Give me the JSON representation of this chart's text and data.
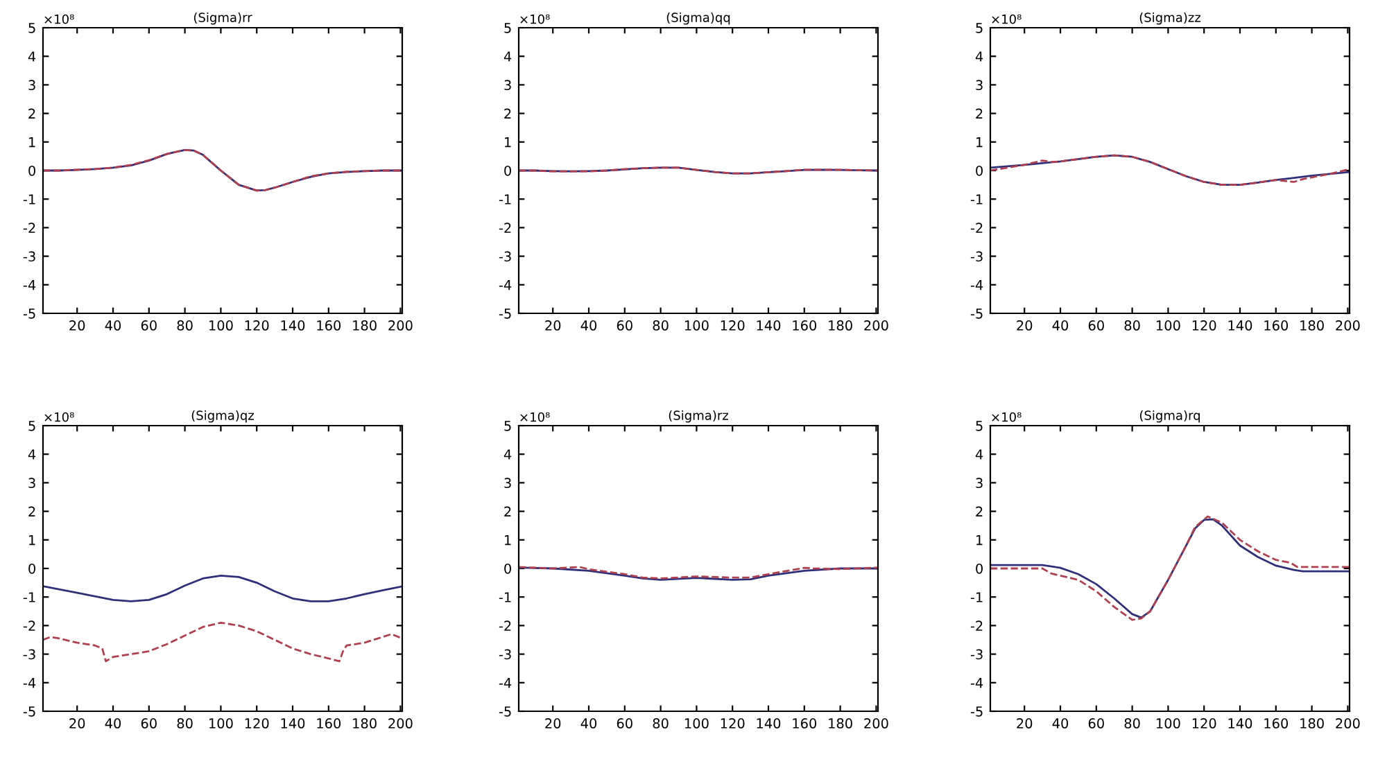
{
  "chart_data": [
    {
      "type": "line",
      "title": "(Sigma)rr",
      "annotations": [
        "×10⁸"
      ],
      "xlim": [
        1,
        201
      ],
      "xticks": [
        20,
        40,
        60,
        80,
        100,
        120,
        140,
        160,
        180,
        200
      ],
      "ylim": [
        -5,
        5
      ],
      "yticks": [
        -5,
        -4,
        -3,
        -2,
        -1,
        0,
        1,
        2,
        3,
        4,
        5
      ],
      "grid": false,
      "series": [
        {
          "color": "#2f2f7a",
          "line_style": "solid",
          "x": [
            1,
            10,
            20,
            30,
            40,
            50,
            60,
            70,
            80,
            85,
            90,
            100,
            110,
            120,
            125,
            130,
            140,
            150,
            160,
            170,
            180,
            190,
            201
          ],
          "values": [
            0,
            0,
            0.02,
            0.05,
            0.1,
            0.18,
            0.35,
            0.58,
            0.72,
            0.7,
            0.55,
            0.0,
            -0.5,
            -0.7,
            -0.68,
            -0.6,
            -0.4,
            -0.22,
            -0.1,
            -0.05,
            -0.02,
            0,
            0
          ]
        },
        {
          "color": "#b04050",
          "line_style": "dashed",
          "x": [
            1,
            10,
            20,
            30,
            40,
            50,
            60,
            70,
            80,
            85,
            90,
            100,
            110,
            120,
            125,
            130,
            140,
            150,
            160,
            170,
            180,
            190,
            201
          ],
          "values": [
            0,
            0,
            0.03,
            0.05,
            0.1,
            0.2,
            0.36,
            0.58,
            0.72,
            0.7,
            0.55,
            0.0,
            -0.5,
            -0.7,
            -0.68,
            -0.6,
            -0.4,
            -0.2,
            -0.1,
            -0.04,
            -0.02,
            0,
            0
          ]
        }
      ]
    },
    {
      "type": "line",
      "title": "(Sigma)qq",
      "annotations": [
        "×10⁸"
      ],
      "xlim": [
        1,
        201
      ],
      "xticks": [
        20,
        40,
        60,
        80,
        100,
        120,
        140,
        160,
        180,
        200
      ],
      "ylim": [
        -5,
        5
      ],
      "yticks": [
        -5,
        -4,
        -3,
        -2,
        -1,
        0,
        1,
        2,
        3,
        4,
        5
      ],
      "grid": false,
      "series": [
        {
          "color": "#2f2f7a",
          "line_style": "solid",
          "x": [
            1,
            10,
            20,
            30,
            40,
            50,
            60,
            70,
            80,
            90,
            100,
            110,
            120,
            130,
            140,
            150,
            160,
            170,
            180,
            190,
            201
          ],
          "values": [
            0,
            0,
            -0.02,
            -0.03,
            -0.02,
            0,
            0.04,
            0.08,
            0.1,
            0.1,
            0.02,
            -0.05,
            -0.1,
            -0.1,
            -0.06,
            -0.02,
            0.02,
            0.03,
            0.02,
            0.01,
            0
          ]
        },
        {
          "color": "#b04050",
          "line_style": "dashed",
          "x": [
            1,
            10,
            20,
            30,
            40,
            50,
            60,
            70,
            80,
            90,
            100,
            110,
            120,
            130,
            140,
            150,
            160,
            170,
            180,
            190,
            201
          ],
          "values": [
            0,
            0,
            -0.03,
            -0.03,
            -0.03,
            0,
            0.05,
            0.08,
            0.1,
            0.1,
            0.02,
            -0.05,
            -0.1,
            -0.1,
            -0.06,
            -0.02,
            0.03,
            0.03,
            0.03,
            0.01,
            0
          ]
        }
      ]
    },
    {
      "type": "line",
      "title": "(Sigma)zz",
      "annotations": [
        "×10⁸"
      ],
      "xlim": [
        1,
        201
      ],
      "xticks": [
        20,
        40,
        60,
        80,
        100,
        120,
        140,
        160,
        180,
        200
      ],
      "ylim": [
        -5,
        5
      ],
      "yticks": [
        -5,
        -4,
        -3,
        -2,
        -1,
        0,
        1,
        2,
        3,
        4,
        5
      ],
      "grid": false,
      "series": [
        {
          "color": "#2f2f7a",
          "line_style": "solid",
          "x": [
            1,
            20,
            40,
            60,
            70,
            80,
            90,
            100,
            110,
            120,
            130,
            140,
            150,
            160,
            170,
            180,
            190,
            201
          ],
          "values": [
            0.1,
            0.2,
            0.32,
            0.48,
            0.53,
            0.48,
            0.3,
            0.05,
            -0.2,
            -0.4,
            -0.5,
            -0.5,
            -0.42,
            -0.33,
            -0.26,
            -0.18,
            -0.12,
            -0.05
          ]
        },
        {
          "color": "#b04050",
          "line_style": "dashed",
          "x": [
            1,
            20,
            30,
            35,
            40,
            60,
            70,
            80,
            90,
            100,
            110,
            120,
            130,
            140,
            150,
            160,
            170,
            175,
            190,
            201
          ],
          "values": [
            0,
            0.2,
            0.35,
            0.3,
            0.32,
            0.48,
            0.53,
            0.48,
            0.3,
            0.05,
            -0.2,
            -0.4,
            -0.5,
            -0.5,
            -0.42,
            -0.33,
            -0.4,
            -0.3,
            -0.12,
            0.05
          ]
        }
      ]
    },
    {
      "type": "line",
      "title": "(Sigma)qz",
      "annotations": [
        "×10⁸"
      ],
      "xlim": [
        1,
        201
      ],
      "xticks": [
        20,
        40,
        60,
        80,
        100,
        120,
        140,
        160,
        180,
        200
      ],
      "ylim": [
        -5,
        5
      ],
      "yticks": [
        -5,
        -4,
        -3,
        -2,
        -1,
        0,
        1,
        2,
        3,
        4,
        5
      ],
      "grid": false,
      "series": [
        {
          "color": "#2f2f7a",
          "line_style": "solid",
          "x": [
            1,
            20,
            40,
            50,
            60,
            70,
            80,
            90,
            100,
            110,
            120,
            130,
            140,
            150,
            160,
            170,
            180,
            190,
            201
          ],
          "values": [
            -0.62,
            -0.85,
            -1.1,
            -1.15,
            -1.1,
            -0.9,
            -0.6,
            -0.35,
            -0.25,
            -0.3,
            -0.5,
            -0.8,
            -1.05,
            -1.15,
            -1.15,
            -1.05,
            -0.9,
            -0.77,
            -0.63
          ]
        },
        {
          "color": "#b04050",
          "line_style": "dashed",
          "x": [
            1,
            5,
            10,
            20,
            30,
            34,
            36,
            40,
            50,
            60,
            70,
            80,
            90,
            100,
            110,
            120,
            130,
            140,
            150,
            160,
            166,
            168,
            170,
            180,
            190,
            195,
            201
          ],
          "values": [
            -2.5,
            -2.4,
            -2.45,
            -2.6,
            -2.7,
            -2.8,
            -3.25,
            -3.1,
            -3.0,
            -2.9,
            -2.65,
            -2.35,
            -2.05,
            -1.9,
            -2.0,
            -2.2,
            -2.5,
            -2.8,
            -3.0,
            -3.15,
            -3.25,
            -2.9,
            -2.7,
            -2.6,
            -2.4,
            -2.3,
            -2.45
          ]
        }
      ]
    },
    {
      "type": "line",
      "title": "(Sigma)rz",
      "annotations": [
        "×10⁸"
      ],
      "xlim": [
        1,
        201
      ],
      "xticks": [
        20,
        40,
        60,
        80,
        100,
        120,
        140,
        160,
        180,
        200
      ],
      "ylim": [
        -5,
        5
      ],
      "yticks": [
        -5,
        -4,
        -3,
        -2,
        -1,
        0,
        1,
        2,
        3,
        4,
        5
      ],
      "grid": false,
      "series": [
        {
          "color": "#2f2f7a",
          "line_style": "solid",
          "x": [
            1,
            20,
            40,
            60,
            70,
            80,
            100,
            120,
            130,
            140,
            160,
            180,
            201
          ],
          "values": [
            0.03,
            0,
            -0.08,
            -0.25,
            -0.35,
            -0.4,
            -0.33,
            -0.4,
            -0.38,
            -0.25,
            -0.08,
            0,
            0
          ]
        },
        {
          "color": "#b04050",
          "line_style": "dashed",
          "x": [
            1,
            20,
            35,
            40,
            60,
            70,
            80,
            100,
            120,
            130,
            140,
            160,
            165,
            180,
            201
          ],
          "values": [
            0.05,
            0,
            0.05,
            -0.03,
            -0.2,
            -0.32,
            -0.35,
            -0.28,
            -0.32,
            -0.32,
            -0.2,
            0.02,
            0,
            -0.02,
            0.03
          ]
        }
      ]
    },
    {
      "type": "line",
      "title": "(Sigma)rq",
      "annotations": [
        "×10⁸"
      ],
      "xlim": [
        1,
        201
      ],
      "xticks": [
        20,
        40,
        60,
        80,
        100,
        120,
        140,
        160,
        180,
        200
      ],
      "ylim": [
        -5,
        5
      ],
      "yticks": [
        -5,
        -4,
        -3,
        -2,
        -1,
        0,
        1,
        2,
        3,
        4,
        5
      ],
      "grid": false,
      "series": [
        {
          "color": "#2f2f7a",
          "line_style": "solid",
          "x": [
            1,
            30,
            40,
            50,
            60,
            70,
            80,
            85,
            90,
            100,
            110,
            115,
            120,
            125,
            130,
            140,
            150,
            160,
            170,
            175,
            201
          ],
          "values": [
            0.12,
            0.12,
            0.02,
            -0.2,
            -0.55,
            -1.05,
            -1.6,
            -1.72,
            -1.5,
            -0.4,
            0.8,
            1.4,
            1.7,
            1.72,
            1.5,
            0.8,
            0.4,
            0.1,
            -0.05,
            -0.1,
            -0.1
          ]
        },
        {
          "color": "#b04050",
          "line_style": "dashed",
          "x": [
            1,
            30,
            35,
            40,
            50,
            60,
            70,
            80,
            85,
            90,
            100,
            110,
            115,
            122,
            130,
            140,
            150,
            160,
            168,
            172,
            201
          ],
          "values": [
            0,
            0,
            -0.18,
            -0.25,
            -0.4,
            -0.8,
            -1.35,
            -1.8,
            -1.75,
            -1.5,
            -0.4,
            0.8,
            1.45,
            1.82,
            1.6,
            1.0,
            0.6,
            0.3,
            0.2,
            0.05,
            0.05
          ]
        }
      ]
    }
  ]
}
